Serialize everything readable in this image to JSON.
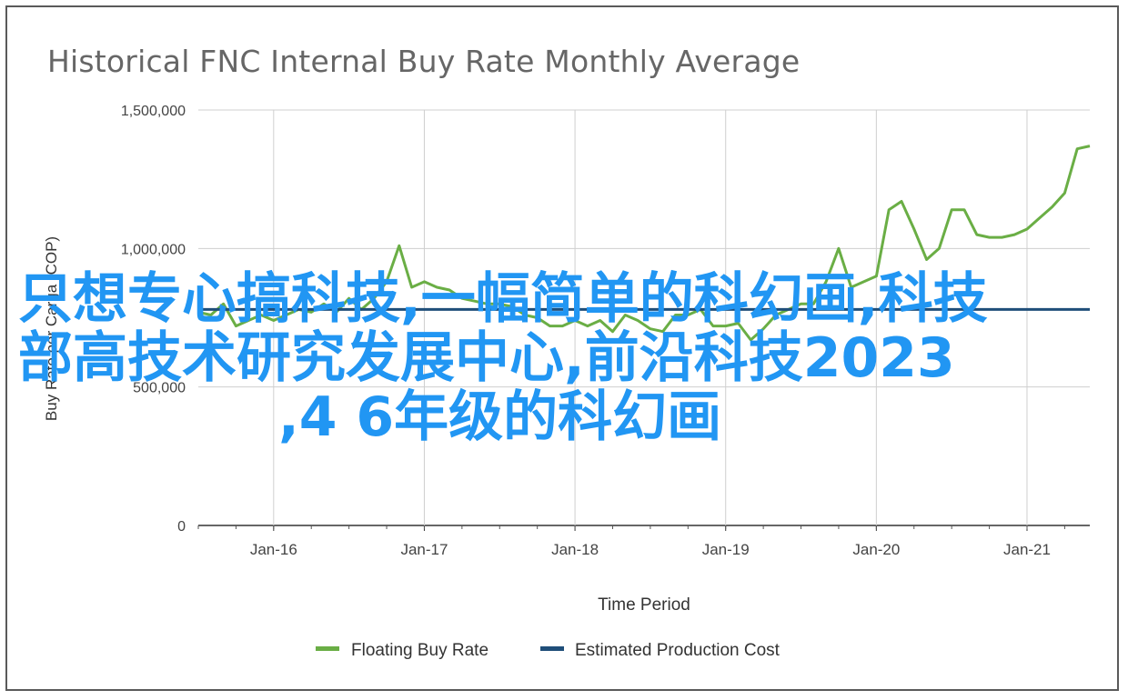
{
  "chart_data": {
    "type": "line",
    "title": "Historical FNC Internal Buy Rate Monthly Average",
    "xlabel": "Time Period",
    "ylabel": "Buy Rate per Carga (COP)",
    "ylim": [
      0,
      1500000
    ],
    "yticks": [
      {
        "value": 0,
        "label": "0"
      },
      {
        "value": 500000,
        "label": "500,000"
      },
      {
        "value": 1000000,
        "label": "1,000,000"
      },
      {
        "value": 1500000,
        "label": "1,500,000"
      }
    ],
    "xlim": [
      "2015-07",
      "2021-06"
    ],
    "xticks": [
      {
        "value": "2016-01",
        "label": "Jan-16"
      },
      {
        "value": "2017-01",
        "label": "Jan-17"
      },
      {
        "value": "2018-01",
        "label": "Jan-18"
      },
      {
        "value": "2019-01",
        "label": "Jan-19"
      },
      {
        "value": "2020-01",
        "label": "Jan-20"
      },
      {
        "value": "2021-01",
        "label": "Jan-21"
      }
    ],
    "grid": true,
    "legend_position": "bottom",
    "series": [
      {
        "name": "Floating Buy Rate",
        "color": "#6aae45",
        "x": [
          "2015-07",
          "2015-08",
          "2015-09",
          "2015-10",
          "2015-11",
          "2015-12",
          "2016-01",
          "2016-02",
          "2016-03",
          "2016-04",
          "2016-05",
          "2016-06",
          "2016-07",
          "2016-08",
          "2016-09",
          "2016-10",
          "2016-11",
          "2016-12",
          "2017-01",
          "2017-02",
          "2017-03",
          "2017-04",
          "2017-05",
          "2017-06",
          "2017-07",
          "2017-08",
          "2017-09",
          "2017-10",
          "2017-11",
          "2017-12",
          "2018-01",
          "2018-02",
          "2018-03",
          "2018-04",
          "2018-05",
          "2018-06",
          "2018-07",
          "2018-08",
          "2018-09",
          "2018-10",
          "2018-11",
          "2018-12",
          "2019-01",
          "2019-02",
          "2019-03",
          "2019-04",
          "2019-05",
          "2019-06",
          "2019-07",
          "2019-08",
          "2019-09",
          "2019-10",
          "2019-11",
          "2019-12",
          "2020-01",
          "2020-02",
          "2020-03",
          "2020-04",
          "2020-05",
          "2020-06",
          "2020-07",
          "2020-08",
          "2020-09",
          "2020-10",
          "2020-11",
          "2020-12",
          "2021-01",
          "2021-02",
          "2021-03",
          "2021-04",
          "2021-05",
          "2021-06"
        ],
        "values": [
          770000,
          760000,
          800000,
          720000,
          740000,
          760000,
          740000,
          760000,
          780000,
          770000,
          800000,
          770000,
          820000,
          780000,
          820000,
          880000,
          1010000,
          860000,
          880000,
          860000,
          850000,
          820000,
          810000,
          800000,
          800000,
          790000,
          760000,
          750000,
          720000,
          720000,
          740000,
          720000,
          740000,
          700000,
          760000,
          740000,
          710000,
          700000,
          760000,
          760000,
          780000,
          720000,
          720000,
          730000,
          670000,
          710000,
          760000,
          780000,
          800000,
          800000,
          880000,
          1000000,
          860000,
          880000,
          900000,
          1140000,
          1170000,
          1070000,
          960000,
          1000000,
          1140000,
          1140000,
          1050000,
          1040000,
          1040000,
          1050000,
          1070000,
          1110000,
          1150000,
          1200000,
          1360000,
          1370000
        ]
      },
      {
        "name": "Estimated Production Cost",
        "color": "#1f4e79",
        "x": [
          "2015-07",
          "2021-06"
        ],
        "values": [
          780000,
          780000
        ]
      }
    ]
  },
  "overlay_text": [
    "只想专心搞科技,一幅简单的科幻画,科技",
    "部高技术研究发展中心,前沿科技2023",
    ",4 6年级的科幻画"
  ]
}
